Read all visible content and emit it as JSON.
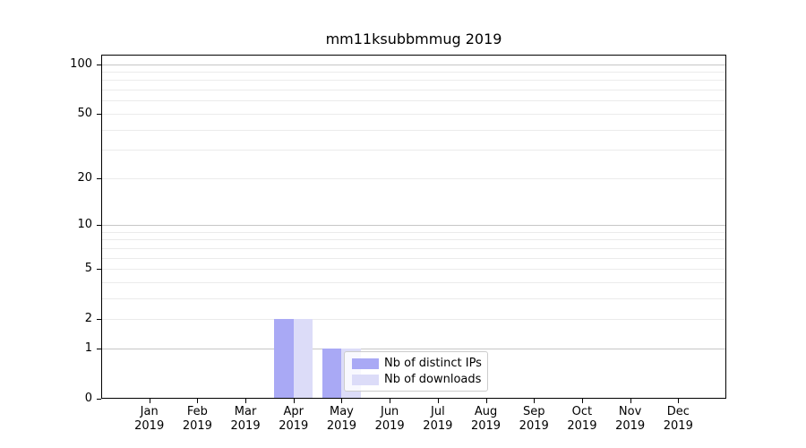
{
  "chart_data": {
    "type": "bar",
    "title": "mm11ksubbmmug 2019",
    "year": "2019",
    "categories": [
      "Jan",
      "Feb",
      "Mar",
      "Apr",
      "May",
      "Jun",
      "Jul",
      "Aug",
      "Sep",
      "Oct",
      "Nov",
      "Dec"
    ],
    "series": [
      {
        "name": "Nb of distinct IPs",
        "color": "#a9a9f5",
        "values": [
          0,
          0,
          0,
          2,
          1,
          0,
          0,
          0,
          0,
          0,
          0,
          0
        ]
      },
      {
        "name": "Nb of downloads",
        "color": "#dcdcf8",
        "values": [
          0,
          0,
          0,
          2,
          1,
          0,
          0,
          0,
          0,
          0,
          0,
          0
        ]
      }
    ],
    "xlabel": "",
    "ylabel": "",
    "yaxis": {
      "scale": "log10(1+v)",
      "range_min": 0,
      "range_max": 115,
      "tick_values": [
        0,
        1,
        2,
        5,
        10,
        20,
        50,
        100
      ],
      "tick_labels": [
        "0",
        "1",
        "2",
        "5",
        "10",
        "20",
        "50",
        "100"
      ],
      "major_grid_values": [
        1,
        10,
        100
      ],
      "minor_grid_values": [
        2,
        3,
        4,
        5,
        6,
        7,
        8,
        9,
        20,
        30,
        40,
        50,
        60,
        70,
        80,
        90
      ]
    },
    "grid": "horizontal",
    "legend": {
      "position": "lower-right-inside",
      "labels": [
        "Nb of distinct IPs",
        "Nb of downloads"
      ]
    }
  },
  "colors": {
    "bar_distinct_ips": "#a9a9f5",
    "bar_downloads": "#dcdcf8",
    "major_grid": "#c6c6c6",
    "minor_grid": "#ebebeb",
    "axis": "#000000",
    "legend_border": "#cccccc",
    "text": "#000000"
  }
}
